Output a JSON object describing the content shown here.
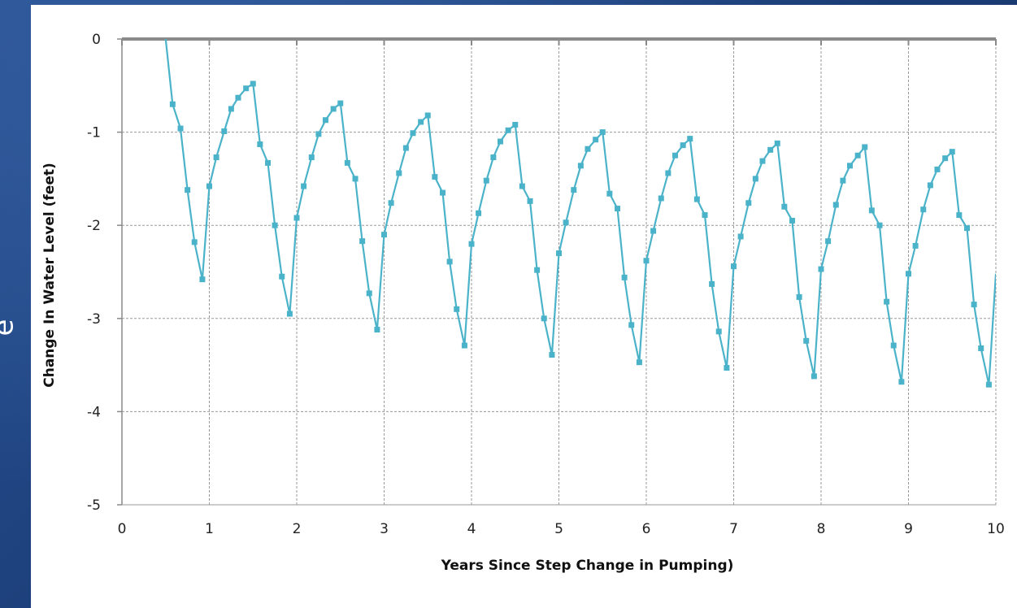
{
  "slide": {
    "stray_glyph": "e"
  },
  "colors": {
    "series": "#4bb3c9",
    "grid": "#9a9a9a",
    "axis": "#8a8a8a",
    "background": "#1c3f78"
  },
  "chart_data": {
    "type": "line",
    "title": "",
    "xlabel": "Years Since Step Change in Pumping)",
    "ylabel": "Change In Water Level (feet)",
    "xlim": [
      0,
      10
    ],
    "ylim": [
      -5,
      0
    ],
    "xticks": [
      0,
      1,
      2,
      3,
      4,
      5,
      6,
      7,
      8,
      9,
      10
    ],
    "yticks": [
      0,
      -1,
      -2,
      -3,
      -4,
      -5
    ],
    "x_tick_labels": [
      "0",
      "1",
      "2",
      "3",
      "4",
      "5",
      "6",
      "7",
      "8",
      "9",
      "10"
    ],
    "y_tick_labels": [
      "0",
      "-1",
      "-2",
      "-3",
      "-4",
      "-5"
    ],
    "grid": true,
    "legend": "none",
    "series": [
      {
        "marker": "square",
        "points": [
          [
            0.5,
            0.0
          ],
          [
            0.58,
            -0.7
          ],
          [
            0.67,
            -0.96
          ],
          [
            0.75,
            -1.62
          ],
          [
            0.83,
            -2.18
          ],
          [
            0.92,
            -2.58
          ],
          [
            1.0,
            -1.58
          ],
          [
            1.08,
            -1.27
          ],
          [
            1.17,
            -0.99
          ],
          [
            1.25,
            -0.75
          ],
          [
            1.33,
            -0.63
          ],
          [
            1.42,
            -0.53
          ],
          [
            1.5,
            -0.48
          ],
          [
            1.58,
            -1.13
          ],
          [
            1.67,
            -1.33
          ],
          [
            1.75,
            -2.0
          ],
          [
            1.83,
            -2.55
          ],
          [
            1.92,
            -2.95
          ],
          [
            2.0,
            -1.92
          ],
          [
            2.08,
            -1.58
          ],
          [
            2.17,
            -1.27
          ],
          [
            2.25,
            -1.02
          ],
          [
            2.33,
            -0.87
          ],
          [
            2.42,
            -0.75
          ],
          [
            2.5,
            -0.69
          ],
          [
            2.58,
            -1.33
          ],
          [
            2.67,
            -1.5
          ],
          [
            2.75,
            -2.17
          ],
          [
            2.83,
            -2.73
          ],
          [
            2.92,
            -3.12
          ],
          [
            3.0,
            -2.1
          ],
          [
            3.08,
            -1.76
          ],
          [
            3.17,
            -1.44
          ],
          [
            3.25,
            -1.17
          ],
          [
            3.33,
            -1.01
          ],
          [
            3.42,
            -0.89
          ],
          [
            3.5,
            -0.82
          ],
          [
            3.58,
            -1.48
          ],
          [
            3.67,
            -1.65
          ],
          [
            3.75,
            -2.39
          ],
          [
            3.83,
            -2.9
          ],
          [
            3.92,
            -3.29
          ],
          [
            4.0,
            -2.2
          ],
          [
            4.08,
            -1.87
          ],
          [
            4.17,
            -1.52
          ],
          [
            4.25,
            -1.27
          ],
          [
            4.33,
            -1.1
          ],
          [
            4.42,
            -0.98
          ],
          [
            4.5,
            -0.92
          ],
          [
            4.58,
            -1.58
          ],
          [
            4.67,
            -1.74
          ],
          [
            4.75,
            -2.48
          ],
          [
            4.83,
            -3.0
          ],
          [
            4.92,
            -3.39
          ],
          [
            5.0,
            -2.3
          ],
          [
            5.08,
            -1.97
          ],
          [
            5.17,
            -1.62
          ],
          [
            5.25,
            -1.36
          ],
          [
            5.33,
            -1.18
          ],
          [
            5.42,
            -1.08
          ],
          [
            5.5,
            -1.0
          ],
          [
            5.58,
            -1.66
          ],
          [
            5.67,
            -1.82
          ],
          [
            5.75,
            -2.56
          ],
          [
            5.83,
            -3.07
          ],
          [
            5.92,
            -3.47
          ],
          [
            6.0,
            -2.38
          ],
          [
            6.08,
            -2.06
          ],
          [
            6.17,
            -1.71
          ],
          [
            6.25,
            -1.44
          ],
          [
            6.33,
            -1.25
          ],
          [
            6.42,
            -1.14
          ],
          [
            6.5,
            -1.07
          ],
          [
            6.58,
            -1.72
          ],
          [
            6.67,
            -1.89
          ],
          [
            6.75,
            -2.63
          ],
          [
            6.83,
            -3.14
          ],
          [
            6.92,
            -3.53
          ],
          [
            7.0,
            -2.44
          ],
          [
            7.08,
            -2.12
          ],
          [
            7.17,
            -1.76
          ],
          [
            7.25,
            -1.5
          ],
          [
            7.33,
            -1.31
          ],
          [
            7.42,
            -1.19
          ],
          [
            7.5,
            -1.12
          ],
          [
            7.58,
            -1.8
          ],
          [
            7.67,
            -1.95
          ],
          [
            7.75,
            -2.77
          ],
          [
            7.83,
            -3.24
          ],
          [
            7.92,
            -3.62
          ],
          [
            8.0,
            -2.47
          ],
          [
            8.08,
            -2.17
          ],
          [
            8.17,
            -1.78
          ],
          [
            8.25,
            -1.52
          ],
          [
            8.33,
            -1.36
          ],
          [
            8.42,
            -1.25
          ],
          [
            8.5,
            -1.16
          ],
          [
            8.58,
            -1.84
          ],
          [
            8.67,
            -2.0
          ],
          [
            8.75,
            -2.82
          ],
          [
            8.83,
            -3.29
          ],
          [
            8.92,
            -3.68
          ],
          [
            9.0,
            -2.52
          ],
          [
            9.08,
            -2.22
          ],
          [
            9.17,
            -1.83
          ],
          [
            9.25,
            -1.57
          ],
          [
            9.33,
            -1.4
          ],
          [
            9.42,
            -1.28
          ],
          [
            9.5,
            -1.21
          ],
          [
            9.58,
            -1.89
          ],
          [
            9.67,
            -2.03
          ],
          [
            9.75,
            -2.85
          ],
          [
            9.83,
            -3.32
          ],
          [
            9.92,
            -3.71
          ],
          [
            10.0,
            -2.52
          ]
        ]
      }
    ]
  }
}
